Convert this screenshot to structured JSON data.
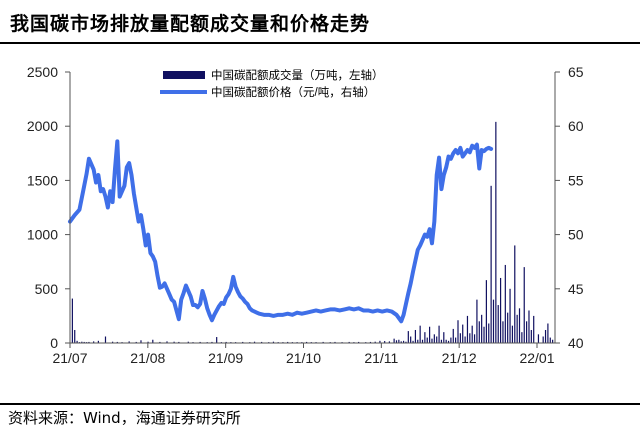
{
  "page": {
    "title": "我国碳市场排放量配额成交量和价格走势",
    "source": "资料来源：Wind，海通证券研究所"
  },
  "chart_data": {
    "type": "bar+line",
    "title": "我国碳市场排放量配额成交量和价格走势",
    "x_ticks": [
      "21/07",
      "21/08",
      "21/09",
      "21/10",
      "21/11",
      "21/12",
      "22/01"
    ],
    "x_range": [
      0,
      205
    ],
    "y_left": {
      "ticks": [
        "0",
        "500",
        "1000",
        "1500",
        "2000",
        "2500"
      ],
      "range": [
        0,
        2500
      ]
    },
    "y_right": {
      "ticks": [
        "40",
        "45",
        "50",
        "55",
        "60",
        "65"
      ],
      "range": [
        40,
        65
      ]
    },
    "legend": {
      "position": "top-center"
    },
    "grid": false,
    "colors": {
      "bars": "#101060",
      "line": "#3F6FE8",
      "axis": "#555555"
    },
    "series": [
      {
        "name": "中国碳配额成交量（万吨，左轴）",
        "type": "bar",
        "axis": "left",
        "points": [
          [
            1,
            410
          ],
          [
            2,
            120
          ],
          [
            3,
            20
          ],
          [
            4,
            8
          ],
          [
            5,
            12
          ],
          [
            6,
            10
          ],
          [
            7,
            8
          ],
          [
            8,
            10
          ],
          [
            10,
            15
          ],
          [
            12,
            20
          ],
          [
            15,
            60
          ],
          [
            18,
            12
          ],
          [
            20,
            10
          ],
          [
            22,
            8
          ],
          [
            25,
            15
          ],
          [
            28,
            10
          ],
          [
            30,
            25
          ],
          [
            33,
            12
          ],
          [
            35,
            30
          ],
          [
            38,
            10
          ],
          [
            41,
            15
          ],
          [
            44,
            12
          ],
          [
            46,
            10
          ],
          [
            50,
            12
          ],
          [
            52,
            8
          ],
          [
            55,
            10
          ],
          [
            58,
            8
          ],
          [
            60,
            10
          ],
          [
            62,
            55
          ],
          [
            64,
            8
          ],
          [
            66,
            10
          ],
          [
            68,
            8
          ],
          [
            70,
            8
          ],
          [
            73,
            10
          ],
          [
            76,
            8
          ],
          [
            78,
            12
          ],
          [
            81,
            10
          ],
          [
            84,
            8
          ],
          [
            86,
            12
          ],
          [
            88,
            8
          ],
          [
            90,
            8
          ],
          [
            92,
            10
          ],
          [
            94,
            8
          ],
          [
            96,
            8
          ],
          [
            98,
            8
          ],
          [
            100,
            10
          ],
          [
            102,
            8
          ],
          [
            104,
            8
          ],
          [
            107,
            10
          ],
          [
            110,
            8
          ],
          [
            112,
            10
          ],
          [
            115,
            8
          ],
          [
            118,
            10
          ],
          [
            120,
            8
          ],
          [
            122,
            10
          ],
          [
            125,
            8
          ],
          [
            127,
            10
          ],
          [
            129,
            12
          ],
          [
            131,
            20
          ],
          [
            133,
            18
          ],
          [
            135,
            15
          ],
          [
            137,
            40
          ],
          [
            138,
            25
          ],
          [
            139,
            30
          ],
          [
            140,
            15
          ],
          [
            141,
            20
          ],
          [
            142,
            12
          ],
          [
            143,
            110
          ],
          [
            144,
            60
          ],
          [
            145,
            20
          ],
          [
            146,
            120
          ],
          [
            147,
            30
          ],
          [
            148,
            160
          ],
          [
            149,
            30
          ],
          [
            150,
            100
          ],
          [
            151,
            50
          ],
          [
            152,
            150
          ],
          [
            153,
            40
          ],
          [
            154,
            80
          ],
          [
            155,
            60
          ],
          [
            156,
            160
          ],
          [
            157,
            30
          ],
          [
            158,
            100
          ],
          [
            159,
            30
          ],
          [
            160,
            20
          ],
          [
            161,
            50
          ],
          [
            162,
            130
          ],
          [
            163,
            50
          ],
          [
            164,
            210
          ],
          [
            165,
            90
          ],
          [
            166,
            170
          ],
          [
            167,
            60
          ],
          [
            168,
            250
          ],
          [
            169,
            90
          ],
          [
            170,
            160
          ],
          [
            171,
            80
          ],
          [
            172,
            400
          ],
          [
            173,
            200
          ],
          [
            174,
            260
          ],
          [
            175,
            150
          ],
          [
            176,
            580
          ],
          [
            177,
            180
          ],
          [
            178,
            1450
          ],
          [
            179,
            400
          ],
          [
            180,
            2040
          ],
          [
            181,
            350
          ],
          [
            182,
            600
          ],
          [
            183,
            200
          ],
          [
            184,
            720
          ],
          [
            185,
            280
          ],
          [
            186,
            500
          ],
          [
            187,
            160
          ],
          [
            188,
            900
          ],
          [
            189,
            260
          ],
          [
            190,
            320
          ],
          [
            191,
            100
          ],
          [
            192,
            700
          ],
          [
            193,
            200
          ],
          [
            194,
            300
          ],
          [
            195,
            120
          ],
          [
            196,
            250
          ],
          [
            198,
            80
          ],
          [
            200,
            60
          ],
          [
            201,
            120
          ],
          [
            202,
            180
          ],
          [
            203,
            50
          ],
          [
            204,
            30
          ]
        ]
      },
      {
        "name": "中国碳配额价格（元/吨，右轴）",
        "type": "line",
        "axis": "right",
        "points": [
          [
            0,
            51.2
          ],
          [
            2,
            51.8
          ],
          [
            4,
            52.3
          ],
          [
            6,
            54.5
          ],
          [
            7,
            55.6
          ],
          [
            8,
            57.0
          ],
          [
            10,
            56.0
          ],
          [
            11,
            54.8
          ],
          [
            12,
            55.5
          ],
          [
            13,
            54.0
          ],
          [
            14,
            54.2
          ],
          [
            15,
            53.5
          ],
          [
            16,
            52.5
          ],
          [
            17,
            54.0
          ],
          [
            18,
            53.0
          ],
          [
            19,
            56.0
          ],
          [
            20,
            58.6
          ],
          [
            21,
            53.5
          ],
          [
            23,
            54.5
          ],
          [
            24,
            56.2
          ],
          [
            25,
            56.6
          ],
          [
            26,
            55.5
          ],
          [
            27,
            53.8
          ],
          [
            28,
            52.5
          ],
          [
            29,
            51.2
          ],
          [
            30,
            51.8
          ],
          [
            31,
            50.5
          ],
          [
            32,
            49.0
          ],
          [
            33,
            50.0
          ],
          [
            34,
            48.3
          ],
          [
            35,
            48.0
          ],
          [
            36,
            47.5
          ],
          [
            37,
            46.2
          ],
          [
            38,
            45.1
          ],
          [
            39,
            45.2
          ],
          [
            40,
            45.5
          ],
          [
            41,
            45.0
          ],
          [
            42,
            44.5
          ],
          [
            43,
            44.0
          ],
          [
            44,
            43.8
          ],
          [
            45,
            43.0
          ],
          [
            46,
            42.2
          ],
          [
            47,
            44.0
          ],
          [
            48,
            44.6
          ],
          [
            49,
            45.3
          ],
          [
            50,
            44.8
          ],
          [
            51,
            44.3
          ],
          [
            52,
            43.5
          ],
          [
            53,
            43.5
          ],
          [
            54,
            43.3
          ],
          [
            55,
            43.6
          ],
          [
            56,
            44.8
          ],
          [
            57,
            44.1
          ],
          [
            58,
            43.2
          ],
          [
            59,
            42.6
          ],
          [
            60,
            42.1
          ],
          [
            61,
            42.6
          ],
          [
            62,
            43.0
          ],
          [
            63,
            43.4
          ],
          [
            64,
            43.7
          ],
          [
            65,
            43.6
          ],
          [
            66,
            44.2
          ],
          [
            67,
            44.5
          ],
          [
            68,
            45.0
          ],
          [
            69,
            46.1
          ],
          [
            70,
            45.2
          ],
          [
            71,
            44.7
          ],
          [
            72,
            44.3
          ],
          [
            73,
            44.1
          ],
          [
            74,
            43.8
          ],
          [
            75,
            43.6
          ],
          [
            76,
            43.2
          ],
          [
            77,
            43.0
          ],
          [
            78,
            42.9
          ],
          [
            79,
            42.8
          ],
          [
            80,
            42.7
          ],
          [
            82,
            42.6
          ],
          [
            84,
            42.6
          ],
          [
            86,
            42.5
          ],
          [
            88,
            42.6
          ],
          [
            90,
            42.6
          ],
          [
            92,
            42.7
          ],
          [
            94,
            42.6
          ],
          [
            96,
            42.8
          ],
          [
            98,
            42.7
          ],
          [
            100,
            42.8
          ],
          [
            102,
            42.9
          ],
          [
            104,
            43.0
          ],
          [
            106,
            42.9
          ],
          [
            108,
            43.0
          ],
          [
            110,
            43.1
          ],
          [
            112,
            43.1
          ],
          [
            114,
            43.0
          ],
          [
            116,
            43.1
          ],
          [
            118,
            43.2
          ],
          [
            120,
            43.1
          ],
          [
            122,
            43.2
          ],
          [
            124,
            43.0
          ],
          [
            126,
            43.0
          ],
          [
            128,
            42.9
          ],
          [
            130,
            43.0
          ],
          [
            132,
            42.9
          ],
          [
            134,
            43.0
          ],
          [
            136,
            42.9
          ],
          [
            138,
            42.6
          ],
          [
            140,
            42.0
          ],
          [
            141,
            42.6
          ],
          [
            142,
            43.6
          ],
          [
            143,
            44.6
          ],
          [
            144,
            45.5
          ],
          [
            145,
            46.6
          ],
          [
            146,
            47.6
          ],
          [
            147,
            48.6
          ],
          [
            148,
            49.0
          ],
          [
            149,
            49.5
          ],
          [
            150,
            50.0
          ],
          [
            151,
            49.8
          ],
          [
            152,
            50.5
          ],
          [
            153,
            49.2
          ],
          [
            154,
            51.2
          ],
          [
            155,
            55.5
          ],
          [
            156,
            57.1
          ],
          [
            157,
            54.2
          ],
          [
            158,
            55.5
          ],
          [
            159,
            56.2
          ],
          [
            160,
            57.2
          ],
          [
            161,
            57.0
          ],
          [
            162,
            57.5
          ],
          [
            163,
            57.8
          ],
          [
            164,
            57.5
          ],
          [
            165,
            58.0
          ],
          [
            166,
            57.2
          ],
          [
            167,
            57.5
          ],
          [
            168,
            57.8
          ],
          [
            169,
            57.6
          ],
          [
            170,
            58.2
          ],
          [
            171,
            58.0
          ],
          [
            172,
            58.3
          ],
          [
            173,
            56.1
          ],
          [
            174,
            57.8
          ],
          [
            175,
            57.7
          ],
          [
            176,
            57.9
          ],
          [
            177,
            58.0
          ],
          [
            178,
            57.9
          ]
        ]
      }
    ]
  }
}
